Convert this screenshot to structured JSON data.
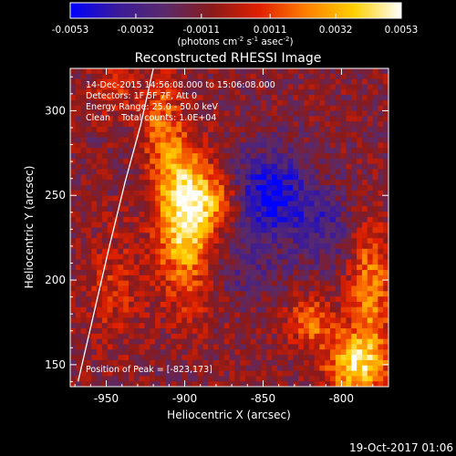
{
  "chart_data": {
    "type": "heatmap",
    "title": "Reconstructed RHESSI Image",
    "xlabel": "Heliocentric X (arcsec)",
    "ylabel": "Heliocentric Y (arcsec)",
    "xlim": [
      -973,
      -770
    ],
    "ylim": [
      137,
      325
    ],
    "x_ticks": [
      -950,
      -900,
      -850,
      -800
    ],
    "y_ticks": [
      150,
      200,
      250,
      300
    ],
    "x_tick_labels": [
      "-950",
      "-900",
      "-850",
      "-800"
    ],
    "y_tick_labels": [
      "150",
      "200",
      "250",
      "300"
    ],
    "colorbar": {
      "min": -0.0053,
      "max": 0.0053,
      "ticks": [
        -0.0053,
        -0.0032,
        -0.0011,
        0.0011,
        0.0032,
        0.0053
      ],
      "tick_labels": [
        "-0.0053",
        "-0.0032",
        "-0.0011",
        "0.0011",
        "0.0032",
        "0.0053"
      ],
      "label_main": "(photons cm",
      "label_exp1": "-2",
      "label_mid1": " s",
      "label_exp2": "-1",
      "label_mid2": " asec",
      "label_exp3": "-2",
      "label_end": ")",
      "colors": [
        "#0000ff",
        "#3a1a9a",
        "#5a2a6a",
        "#8a1a1a",
        "#e02000",
        "#ff8000",
        "#ffd000",
        "#ffffff"
      ]
    },
    "info_lines": [
      "14-Dec-2015 14:56:08.000 to 15:06:08.000",
      "Detectors: 1F 5F 7F, Att 0",
      "Energy Range: 25.0 - 50.0 keV",
      "Clean    Total counts: 1.0E+04"
    ],
    "peak_text": "Position of Peak = [-823,173]",
    "peak": [
      -823,
      173
    ],
    "limb_curve": [
      [
        -968,
        140
      ],
      [
        -958,
        180
      ],
      [
        -948,
        220
      ],
      [
        -938,
        258
      ],
      [
        -928,
        292
      ],
      [
        -920,
        325
      ]
    ],
    "emission_sources": [
      {
        "x": -898,
        "y": 224,
        "sx": 14,
        "sy": 28,
        "amp": 0.0045
      },
      {
        "x": -900,
        "y": 255,
        "sx": 10,
        "sy": 22,
        "amp": 0.003
      },
      {
        "x": -880,
        "y": 248,
        "sx": 12,
        "sy": 10,
        "amp": 0.0026
      },
      {
        "x": -915,
        "y": 290,
        "sx": 8,
        "sy": 25,
        "amp": 0.0028
      },
      {
        "x": -790,
        "y": 150,
        "sx": 14,
        "sy": 14,
        "amp": 0.005
      },
      {
        "x": -782,
        "y": 195,
        "sx": 9,
        "sy": 25,
        "amp": 0.0035
      },
      {
        "x": -820,
        "y": 175,
        "sx": 10,
        "sy": 10,
        "amp": 0.0032
      },
      {
        "x": -945,
        "y": 195,
        "sx": 12,
        "sy": 25,
        "amp": 0.0016
      },
      {
        "x": -945,
        "y": 312,
        "sx": 10,
        "sy": 12,
        "amp": 0.0018
      }
    ],
    "negative_regions": [
      {
        "x": -845,
        "y": 250,
        "sx": 18,
        "sy": 18,
        "amp": -0.004
      },
      {
        "x": -810,
        "y": 230,
        "sx": 12,
        "sy": 15,
        "amp": -0.002
      },
      {
        "x": -870,
        "y": 205,
        "sx": 25,
        "sy": 12,
        "amp": -0.0015
      }
    ]
  },
  "footer": {
    "timestamp": "19-Oct-2017 01:06"
  }
}
